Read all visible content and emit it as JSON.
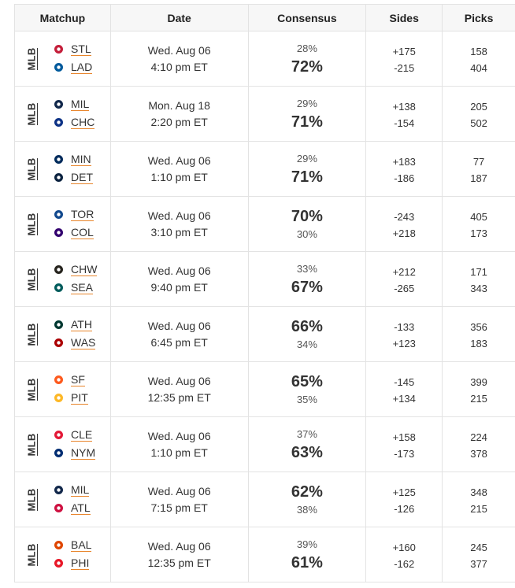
{
  "header": {
    "matchup": "Matchup",
    "date": "Date",
    "consensus": "Consensus",
    "sides": "Sides",
    "picks": "Picks"
  },
  "colors": {
    "underline": "#e8842a",
    "border": "#e3e3e3",
    "header_bg": "#f7f7f7"
  },
  "rows": [
    {
      "league": "MLB",
      "away": {
        "abbr": "STL",
        "icon": "cardinals-logo",
        "color": "#c41e3a"
      },
      "home": {
        "abbr": "LAD",
        "icon": "dodgers-logo",
        "color": "#005a9c"
      },
      "date": "Wed. Aug 06",
      "time": "4:10 pm ET",
      "away_pct": "28%",
      "home_pct": "72%",
      "big": "home",
      "away_side": "+175",
      "home_side": "-215",
      "away_picks": "158",
      "home_picks": "404"
    },
    {
      "league": "MLB",
      "away": {
        "abbr": "MIL",
        "icon": "brewers-logo",
        "color": "#12284b"
      },
      "home": {
        "abbr": "CHC",
        "icon": "cubs-logo",
        "color": "#0e3386"
      },
      "date": "Mon. Aug 18",
      "time": "2:20 pm ET",
      "away_pct": "29%",
      "home_pct": "71%",
      "big": "home",
      "away_side": "+138",
      "home_side": "-154",
      "away_picks": "205",
      "home_picks": "502"
    },
    {
      "league": "MLB",
      "away": {
        "abbr": "MIN",
        "icon": "twins-logo",
        "color": "#002b5c"
      },
      "home": {
        "abbr": "DET",
        "icon": "tigers-logo",
        "color": "#0c2340"
      },
      "date": "Wed. Aug 06",
      "time": "1:10 pm ET",
      "away_pct": "29%",
      "home_pct": "71%",
      "big": "home",
      "away_side": "+183",
      "home_side": "-186",
      "away_picks": "77",
      "home_picks": "187"
    },
    {
      "league": "MLB",
      "away": {
        "abbr": "TOR",
        "icon": "bluejays-logo",
        "color": "#134a8e"
      },
      "home": {
        "abbr": "COL",
        "icon": "rockies-logo",
        "color": "#33006f"
      },
      "date": "Wed. Aug 06",
      "time": "3:10 pm ET",
      "away_pct": "70%",
      "home_pct": "30%",
      "big": "away",
      "away_side": "-243",
      "home_side": "+218",
      "away_picks": "405",
      "home_picks": "173"
    },
    {
      "league": "MLB",
      "away": {
        "abbr": "CHW",
        "icon": "whitesox-logo",
        "color": "#27251f"
      },
      "home": {
        "abbr": "SEA",
        "icon": "mariners-logo",
        "color": "#005c5c"
      },
      "date": "Wed. Aug 06",
      "time": "9:40 pm ET",
      "away_pct": "33%",
      "home_pct": "67%",
      "big": "home",
      "away_side": "+212",
      "home_side": "-265",
      "away_picks": "171",
      "home_picks": "343"
    },
    {
      "league": "MLB",
      "away": {
        "abbr": "ATH",
        "icon": "athletics-logo",
        "color": "#003831"
      },
      "home": {
        "abbr": "WAS",
        "icon": "nationals-logo",
        "color": "#ab0003"
      },
      "date": "Wed. Aug 06",
      "time": "6:45 pm ET",
      "away_pct": "66%",
      "home_pct": "34%",
      "big": "away",
      "away_side": "-133",
      "home_side": "+123",
      "away_picks": "356",
      "home_picks": "183"
    },
    {
      "league": "MLB",
      "away": {
        "abbr": "SF",
        "icon": "giants-logo",
        "color": "#fd5a1e"
      },
      "home": {
        "abbr": "PIT",
        "icon": "pirates-logo",
        "color": "#fdb827"
      },
      "date": "Wed. Aug 06",
      "time": "12:35 pm ET",
      "away_pct": "65%",
      "home_pct": "35%",
      "big": "away",
      "away_side": "-145",
      "home_side": "+134",
      "away_picks": "399",
      "home_picks": "215"
    },
    {
      "league": "MLB",
      "away": {
        "abbr": "CLE",
        "icon": "guardians-logo",
        "color": "#e31937"
      },
      "home": {
        "abbr": "NYM",
        "icon": "mets-logo",
        "color": "#002d72"
      },
      "date": "Wed. Aug 06",
      "time": "1:10 pm ET",
      "away_pct": "37%",
      "home_pct": "63%",
      "big": "home",
      "away_side": "+158",
      "home_side": "-173",
      "away_picks": "224",
      "home_picks": "378"
    },
    {
      "league": "MLB",
      "away": {
        "abbr": "MIL",
        "icon": "brewers-logo",
        "color": "#12284b"
      },
      "home": {
        "abbr": "ATL",
        "icon": "braves-logo",
        "color": "#ce1141"
      },
      "date": "Wed. Aug 06",
      "time": "7:15 pm ET",
      "away_pct": "62%",
      "home_pct": "38%",
      "big": "away",
      "away_side": "+125",
      "home_side": "-126",
      "away_picks": "348",
      "home_picks": "215"
    },
    {
      "league": "MLB",
      "away": {
        "abbr": "BAL",
        "icon": "orioles-logo",
        "color": "#df4601"
      },
      "home": {
        "abbr": "PHI",
        "icon": "phillies-logo",
        "color": "#e81828"
      },
      "date": "Wed. Aug 06",
      "time": "12:35 pm ET",
      "away_pct": "39%",
      "home_pct": "61%",
      "big": "home",
      "away_side": "+160",
      "home_side": "-162",
      "away_picks": "245",
      "home_picks": "377"
    }
  ]
}
